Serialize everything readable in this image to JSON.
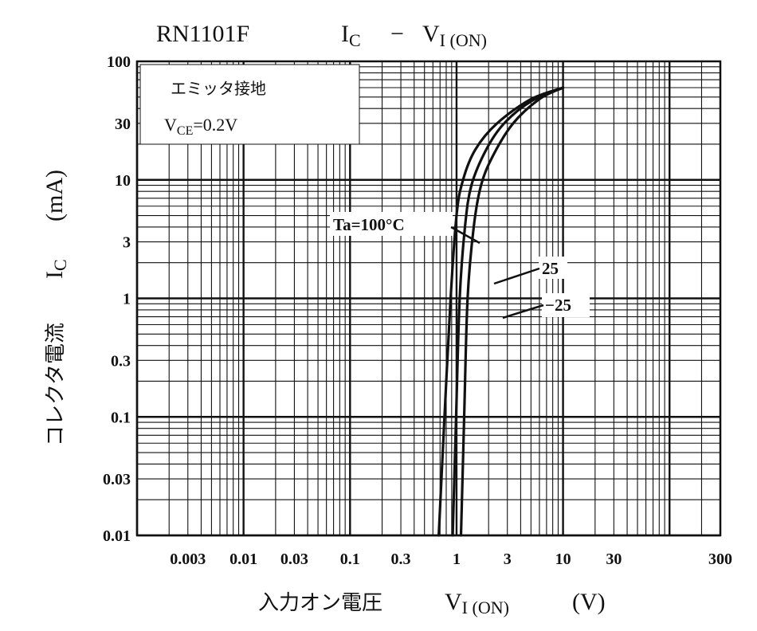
{
  "chart_data": {
    "type": "line",
    "model": "RN1101F",
    "title_main": "I",
    "title_main_sub": "C",
    "title_dash": "−",
    "title_x": "V",
    "title_x_sub": "I (ON)",
    "xscale": "log",
    "yscale": "log",
    "xlim": [
      0.001,
      300
    ],
    "ylim": [
      0.01,
      100
    ],
    "x_ticks": [
      {
        "value": 0.003,
        "label": "0.003"
      },
      {
        "value": 0.01,
        "label": "0.01"
      },
      {
        "value": 0.03,
        "label": "0.03"
      },
      {
        "value": 0.1,
        "label": "0.1"
      },
      {
        "value": 0.3,
        "label": "0.3"
      },
      {
        "value": 1,
        "label": "1"
      },
      {
        "value": 3,
        "label": "3"
      },
      {
        "value": 10,
        "label": "10"
      },
      {
        "value": 30,
        "label": "30"
      },
      {
        "value": 300,
        "label": "300"
      }
    ],
    "y_ticks": [
      {
        "value": 0.01,
        "label": "0.01"
      },
      {
        "value": 0.03,
        "label": "0.03"
      },
      {
        "value": 0.1,
        "label": "0.1"
      },
      {
        "value": 0.3,
        "label": "0.3"
      },
      {
        "value": 1,
        "label": "1"
      },
      {
        "value": 3,
        "label": "3"
      },
      {
        "value": 10,
        "label": "10"
      },
      {
        "value": 30,
        "label": "30"
      },
      {
        "value": 100,
        "label": "100"
      }
    ],
    "xlabel_jp": "入力オン電圧",
    "xlabel_sym": "V",
    "xlabel_sym_sub": "I (ON)",
    "xlabel_unit": "(V)",
    "ylabel_jp": "コレクタ電流",
    "ylabel_sym": "I",
    "ylabel_sym_sub": "C",
    "ylabel_unit": "(mA)",
    "conditions": {
      "line1": "エミッタ接地",
      "line2_sym": "V",
      "line2_sub": "CE",
      "line2_rest": "=0.2V"
    },
    "series": [
      {
        "name": "Ta=100°C",
        "label": "Ta=100°C",
        "points": [
          [
            0.68,
            0.01
          ],
          [
            0.77,
            0.1
          ],
          [
            0.88,
            1
          ],
          [
            1.0,
            5
          ],
          [
            1.15,
            10
          ],
          [
            1.5,
            18
          ],
          [
            2.4,
            30
          ],
          [
            5.0,
            48
          ],
          [
            10.0,
            60
          ]
        ]
      },
      {
        "name": "25",
        "label": "25",
        "points": [
          [
            0.92,
            0.01
          ],
          [
            0.99,
            0.1
          ],
          [
            1.07,
            1
          ],
          [
            1.2,
            4
          ],
          [
            1.38,
            9
          ],
          [
            1.9,
            18
          ],
          [
            2.8,
            30
          ],
          [
            5.0,
            46
          ],
          [
            10.0,
            60
          ]
        ]
      },
      {
        "name": "-25",
        "label": "−25",
        "points": [
          [
            1.1,
            0.01
          ],
          [
            1.18,
            0.1
          ],
          [
            1.27,
            1
          ],
          [
            1.45,
            4
          ],
          [
            1.7,
            9
          ],
          [
            2.2,
            16
          ],
          [
            3.4,
            30
          ],
          [
            6.0,
            48
          ],
          [
            10.0,
            60
          ]
        ]
      }
    ]
  }
}
